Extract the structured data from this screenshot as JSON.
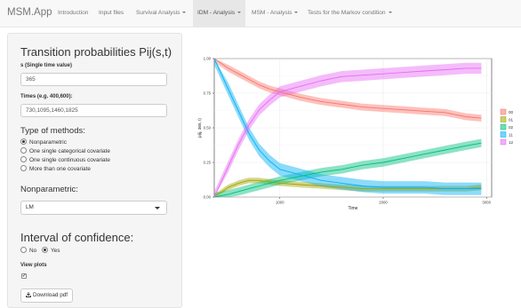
{
  "navbar": {
    "brand": "MSM.App",
    "items": [
      {
        "label": "Introduction",
        "dropdown": false,
        "active": false
      },
      {
        "label": "Input files",
        "dropdown": false,
        "active": false
      },
      {
        "label": "Survival Analysis",
        "dropdown": true,
        "active": false
      },
      {
        "label": "IDM - Analysis",
        "dropdown": true,
        "active": true
      },
      {
        "label": "MSM - Analysis",
        "dropdown": true,
        "active": false
      },
      {
        "label": "Tests for the Markov condition",
        "dropdown": true,
        "active": false
      }
    ]
  },
  "sidebar": {
    "title": "Transition probabilities Pij(s,t)",
    "s_label": "s (Single time value)",
    "s_value": "365",
    "times_label": "Times (e.g. 400,600):",
    "times_value": "730,1095,1460,1825",
    "methods_title": "Type of methods:",
    "methods": [
      {
        "label": "Nonparametric",
        "selected": true
      },
      {
        "label": "One single categorical covariate",
        "selected": false
      },
      {
        "label": "One single continuous covariate",
        "selected": false
      },
      {
        "label": "More than one covariate",
        "selected": false
      }
    ],
    "nonparam_title": "Nonparametric:",
    "nonparam_value": "LM",
    "ci_title": "Interval of confidence:",
    "ci_options": [
      {
        "label": "No",
        "selected": false
      },
      {
        "label": "Yes",
        "selected": true
      }
    ],
    "view_plots_label": "View plots",
    "view_plots_checked": true,
    "download_label": "Download pdf",
    "download_icon": "download-icon"
  },
  "chart_data": {
    "type": "line",
    "xlabel": "Time",
    "ylabel": "p(ij, 365, t)",
    "xlim": [
      365,
      3050
    ],
    "ylim": [
      0,
      1
    ],
    "x_ticks": [
      1000,
      2000,
      3000
    ],
    "y_ticks": [
      "0.00",
      "0.25",
      "0.50",
      "0.75",
      "1.00"
    ],
    "y_tick_values": [
      0,
      0.25,
      0.5,
      0.75,
      1.0
    ],
    "grid": true,
    "legend_position": "right",
    "confidence_bands": true,
    "x": [
      365,
      500,
      600,
      700,
      800,
      900,
      1000,
      1200,
      1400,
      1600,
      1800,
      2000,
      2200,
      2400,
      2600,
      2800,
      2950
    ],
    "series": [
      {
        "name": "00",
        "color": "#f8766d",
        "values": [
          1.0,
          0.93,
          0.89,
          0.85,
          0.81,
          0.78,
          0.76,
          0.72,
          0.69,
          0.67,
          0.65,
          0.64,
          0.63,
          0.62,
          0.61,
          0.58,
          0.57
        ],
        "band": 0.025
      },
      {
        "name": "01",
        "color": "#a3a500",
        "values": [
          0.0,
          0.07,
          0.1,
          0.12,
          0.12,
          0.11,
          0.1,
          0.09,
          0.08,
          0.07,
          0.06,
          0.06,
          0.06,
          0.06,
          0.06,
          0.06,
          0.07
        ],
        "band": 0.02
      },
      {
        "name": "02",
        "color": "#00bf7d",
        "values": [
          0.0,
          0.02,
          0.04,
          0.06,
          0.08,
          0.1,
          0.12,
          0.15,
          0.18,
          0.2,
          0.23,
          0.25,
          0.28,
          0.31,
          0.34,
          0.37,
          0.39
        ],
        "band": 0.03
      },
      {
        "name": "11",
        "color": "#00b0f6",
        "values": [
          1.0,
          0.78,
          0.62,
          0.46,
          0.34,
          0.26,
          0.2,
          0.16,
          0.12,
          0.1,
          0.08,
          0.07,
          0.07,
          0.07,
          0.06,
          0.06,
          0.06
        ],
        "band": 0.045
      },
      {
        "name": "12",
        "color": "#e76bf3",
        "values": [
          0.0,
          0.22,
          0.38,
          0.52,
          0.63,
          0.7,
          0.76,
          0.8,
          0.84,
          0.87,
          0.88,
          0.89,
          0.9,
          0.91,
          0.92,
          0.93,
          0.93
        ],
        "band": 0.04
      }
    ]
  }
}
